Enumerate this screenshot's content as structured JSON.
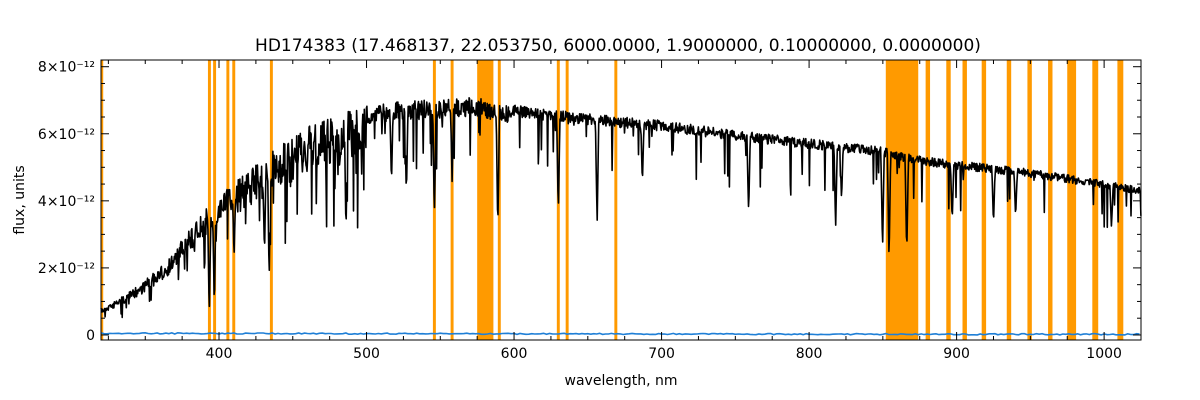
{
  "chart_data": {
    "type": "line",
    "title": "HD174383   (17.468137, 22.053750, 6000.0000, 1.9000000, 0.10000000, 0.0000000)",
    "xlabel": "wavelength, nm",
    "ylabel": "flux, units",
    "xlim": [
      320,
      1025
    ],
    "ylim": [
      -1.5e-13,
      8.2e-12
    ],
    "x_ticks": [
      400,
      500,
      600,
      700,
      800,
      900,
      1000
    ],
    "x_tick_labels": [
      "400",
      "500",
      "600",
      "700",
      "800",
      "900",
      "1000"
    ],
    "y_ticks": [
      0,
      2e-12,
      4e-12,
      6e-12,
      8e-12
    ],
    "y_tick_labels": [
      "0",
      "2×10⁻¹²",
      "4×10⁻¹²",
      "6×10⁻¹²",
      "8×10⁻¹²"
    ],
    "grid": false,
    "colors": {
      "spectrum": "#000000",
      "error": "#1f7fd6",
      "mask": "#ff9a00"
    },
    "series": [
      {
        "role": "spectrum",
        "x": [
          320,
          340,
          360,
          370,
          380,
          400,
          420,
          440,
          460,
          480,
          500,
          520,
          540,
          560,
          575,
          590,
          610,
          630,
          650,
          700,
          750,
          800,
          850,
          860,
          880,
          900,
          950,
          1000,
          1025
        ],
        "y": [
          8e-13,
          1.3e-12,
          2e-12,
          2.5e-12,
          3.2e-12,
          4.2e-12,
          4.9e-12,
          5.6e-12,
          6.2e-12,
          6.6e-12,
          6.85e-12,
          6.95e-12,
          7e-12,
          7.05e-12,
          7.1e-12,
          6.9e-12,
          6.8e-12,
          6.7e-12,
          6.6e-12,
          6.4e-12,
          6.1e-12,
          5.85e-12,
          5.6e-12,
          5.45e-12,
          5.3e-12,
          5.2e-12,
          4.95e-12,
          4.6e-12,
          4.4e-12
        ]
      },
      {
        "role": "error",
        "x": [
          320,
          500,
          700,
          900,
          1025
        ],
        "y": [
          5e-14,
          4e-14,
          3e-14,
          2e-14,
          2e-14
        ]
      }
    ],
    "absorption_lines": [
      {
        "x": 393.4,
        "depth": 0.85
      },
      {
        "x": 396.8,
        "depth": 0.8
      },
      {
        "x": 410.2,
        "depth": 0.5
      },
      {
        "x": 430.8,
        "depth": 0.55
      },
      {
        "x": 434.0,
        "depth": 0.7
      },
      {
        "x": 486.1,
        "depth": 0.55
      },
      {
        "x": 516.9,
        "depth": 0.35
      },
      {
        "x": 527.0,
        "depth": 0.4
      },
      {
        "x": 546.0,
        "depth": 0.5
      },
      {
        "x": 558.0,
        "depth": 0.35
      },
      {
        "x": 589.0,
        "depth": 0.55
      },
      {
        "x": 630.0,
        "depth": 0.45
      },
      {
        "x": 656.3,
        "depth": 0.5
      },
      {
        "x": 687.0,
        "depth": 0.3
      },
      {
        "x": 759.0,
        "depth": 0.4
      },
      {
        "x": 818.0,
        "depth": 0.45
      },
      {
        "x": 822.0,
        "depth": 0.3
      },
      {
        "x": 849.8,
        "depth": 0.55
      },
      {
        "x": 854.2,
        "depth": 0.6
      },
      {
        "x": 866.2,
        "depth": 0.55
      },
      {
        "x": 897.0,
        "depth": 0.35
      },
      {
        "x": 925.0,
        "depth": 0.35
      },
      {
        "x": 940.0,
        "depth": 0.3
      },
      {
        "x": 1005.0,
        "depth": 0.3
      }
    ],
    "masked_regions": [
      [
        320,
        321.5
      ],
      [
        392.5,
        394.5
      ],
      [
        396,
        398
      ],
      [
        405,
        407
      ],
      [
        409,
        411
      ],
      [
        434.5,
        436.5
      ],
      [
        545,
        547
      ],
      [
        557,
        559
      ],
      [
        575,
        586
      ],
      [
        589,
        591
      ],
      [
        629,
        631
      ],
      [
        635,
        637
      ],
      [
        668,
        670
      ],
      [
        852,
        874
      ],
      [
        879,
        882
      ],
      [
        893,
        896
      ],
      [
        904,
        907
      ],
      [
        917,
        920
      ],
      [
        934,
        937
      ],
      [
        948,
        951
      ],
      [
        962,
        965
      ],
      [
        975,
        981
      ],
      [
        992,
        996
      ],
      [
        1009,
        1013
      ]
    ]
  }
}
